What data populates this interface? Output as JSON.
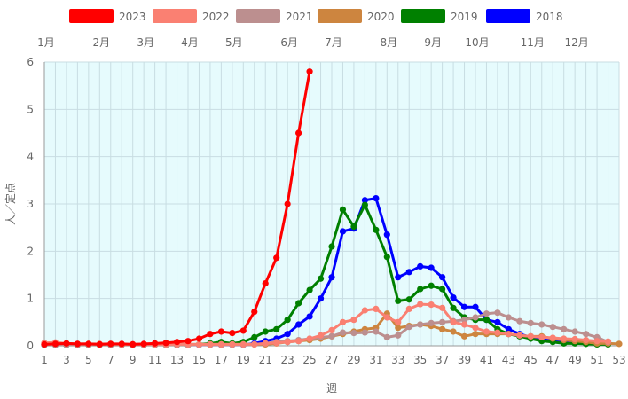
{
  "chart_data": {
    "type": "line",
    "title": "",
    "xlabel": "週",
    "ylabel": "人／定点",
    "xlim": [
      1,
      53
    ],
    "ylim": [
      0,
      6
    ],
    "x_ticks": [
      1,
      3,
      5,
      7,
      9,
      11,
      13,
      15,
      17,
      19,
      21,
      23,
      25,
      27,
      29,
      31,
      33,
      35,
      37,
      39,
      41,
      43,
      45,
      47,
      49,
      51,
      53
    ],
    "y_ticks": [
      0,
      1,
      2,
      3,
      4,
      5,
      6
    ],
    "month_labels": [
      {
        "label": "1月",
        "week": 1
      },
      {
        "label": "2月",
        "week": 6
      },
      {
        "label": "3月",
        "week": 10
      },
      {
        "label": "4月",
        "week": 14
      },
      {
        "label": "5月",
        "week": 18
      },
      {
        "label": "6月",
        "week": 23
      },
      {
        "label": "7月",
        "week": 27
      },
      {
        "label": "8月",
        "week": 32
      },
      {
        "label": "9月",
        "week": 36
      },
      {
        "label": "10月",
        "week": 40
      },
      {
        "label": "11月",
        "week": 45
      },
      {
        "label": "12月",
        "week": 49
      }
    ],
    "grid": true,
    "legend_position": "top",
    "plot_background": "#e6fbfd",
    "series": [
      {
        "name": "2023",
        "color": "#ff0000",
        "values": [
          0.03,
          0.04,
          0.05,
          0.04,
          0.04,
          0.03,
          0.04,
          0.04,
          0.03,
          0.04,
          0.05,
          0.06,
          0.08,
          0.1,
          0.15,
          0.25,
          0.3,
          0.27,
          0.32,
          0.72,
          1.32,
          1.86,
          3.0,
          4.5,
          5.8
        ]
      },
      {
        "name": "2022",
        "color": "#fa8072",
        "values": [
          0.06,
          0.07,
          0.05,
          0.04,
          0.04,
          0.04,
          0.04,
          0.03,
          0.03,
          0.03,
          0.03,
          0.03,
          0.03,
          0.03,
          0.03,
          0.03,
          0.03,
          0.03,
          0.03,
          0.03,
          0.05,
          0.06,
          0.08,
          0.1,
          0.15,
          0.22,
          0.33,
          0.5,
          0.55,
          0.75,
          0.78,
          0.6,
          0.5,
          0.78,
          0.88,
          0.87,
          0.8,
          0.5,
          0.45,
          0.38,
          0.3,
          0.28,
          0.25,
          0.22,
          0.2,
          0.18,
          0.17,
          0.15,
          0.14,
          0.12,
          0.1,
          0.09
        ]
      },
      {
        "name": "2021",
        "color": "#bc8f8f",
        "values": [
          0.02,
          0.02,
          0.02,
          0.02,
          0.02,
          0.02,
          0.02,
          0.02,
          0.02,
          0.02,
          0.02,
          0.02,
          0.02,
          0.02,
          0.02,
          0.02,
          0.02,
          0.02,
          0.02,
          0.03,
          0.05,
          0.08,
          0.1,
          0.12,
          0.15,
          0.18,
          0.2,
          0.28,
          0.27,
          0.28,
          0.3,
          0.18,
          0.22,
          0.4,
          0.45,
          0.48,
          0.5,
          0.52,
          0.55,
          0.6,
          0.68,
          0.7,
          0.6,
          0.52,
          0.48,
          0.45,
          0.4,
          0.35,
          0.3,
          0.25,
          0.18,
          0.08
        ]
      },
      {
        "name": "2020",
        "color": "#cd853f",
        "values": [
          0.04,
          0.04,
          0.04,
          0.03,
          0.03,
          0.03,
          0.03,
          0.03,
          0.03,
          0.03,
          0.03,
          0.03,
          0.03,
          0.03,
          0.03,
          0.03,
          0.03,
          0.03,
          0.03,
          0.03,
          0.03,
          0.05,
          0.08,
          0.1,
          0.12,
          0.15,
          0.2,
          0.25,
          0.3,
          0.35,
          0.38,
          0.68,
          0.38,
          0.42,
          0.45,
          0.42,
          0.35,
          0.3,
          0.2,
          0.25,
          0.25,
          0.25,
          0.25,
          0.22,
          0.2,
          0.2,
          0.15,
          0.12,
          0.1,
          0.08,
          0.05,
          0.05,
          0.04
        ]
      },
      {
        "name": "2019",
        "color": "#008000",
        "values": [
          0.02,
          0.02,
          0.02,
          0.02,
          0.02,
          0.02,
          0.02,
          0.02,
          0.02,
          0.02,
          0.02,
          0.02,
          0.02,
          0.02,
          0.03,
          0.05,
          0.08,
          0.05,
          0.08,
          0.18,
          0.3,
          0.35,
          0.55,
          0.9,
          1.18,
          1.42,
          2.1,
          2.88,
          2.52,
          2.98,
          2.45,
          1.88,
          0.95,
          0.98,
          1.2,
          1.27,
          1.2,
          0.8,
          0.6,
          0.55,
          0.55,
          0.35,
          0.25,
          0.2,
          0.15,
          0.1,
          0.08,
          0.05,
          0.05,
          0.04,
          0.03,
          0.03
        ]
      },
      {
        "name": "2018",
        "color": "#0000ff",
        "values": [
          0.02,
          0.02,
          0.02,
          0.02,
          0.02,
          0.02,
          0.02,
          0.02,
          0.02,
          0.02,
          0.02,
          0.02,
          0.02,
          0.02,
          0.02,
          0.02,
          0.02,
          0.02,
          0.02,
          0.05,
          0.1,
          0.15,
          0.25,
          0.45,
          0.62,
          1.0,
          1.45,
          2.42,
          2.48,
          3.08,
          3.12,
          2.35,
          1.45,
          1.56,
          1.68,
          1.65,
          1.45,
          1.02,
          0.82,
          0.82,
          0.55,
          0.5,
          0.35,
          0.25,
          0.18,
          0.15,
          0.12,
          0.1,
          0.08,
          0.06,
          0.05,
          0.04
        ]
      }
    ]
  }
}
